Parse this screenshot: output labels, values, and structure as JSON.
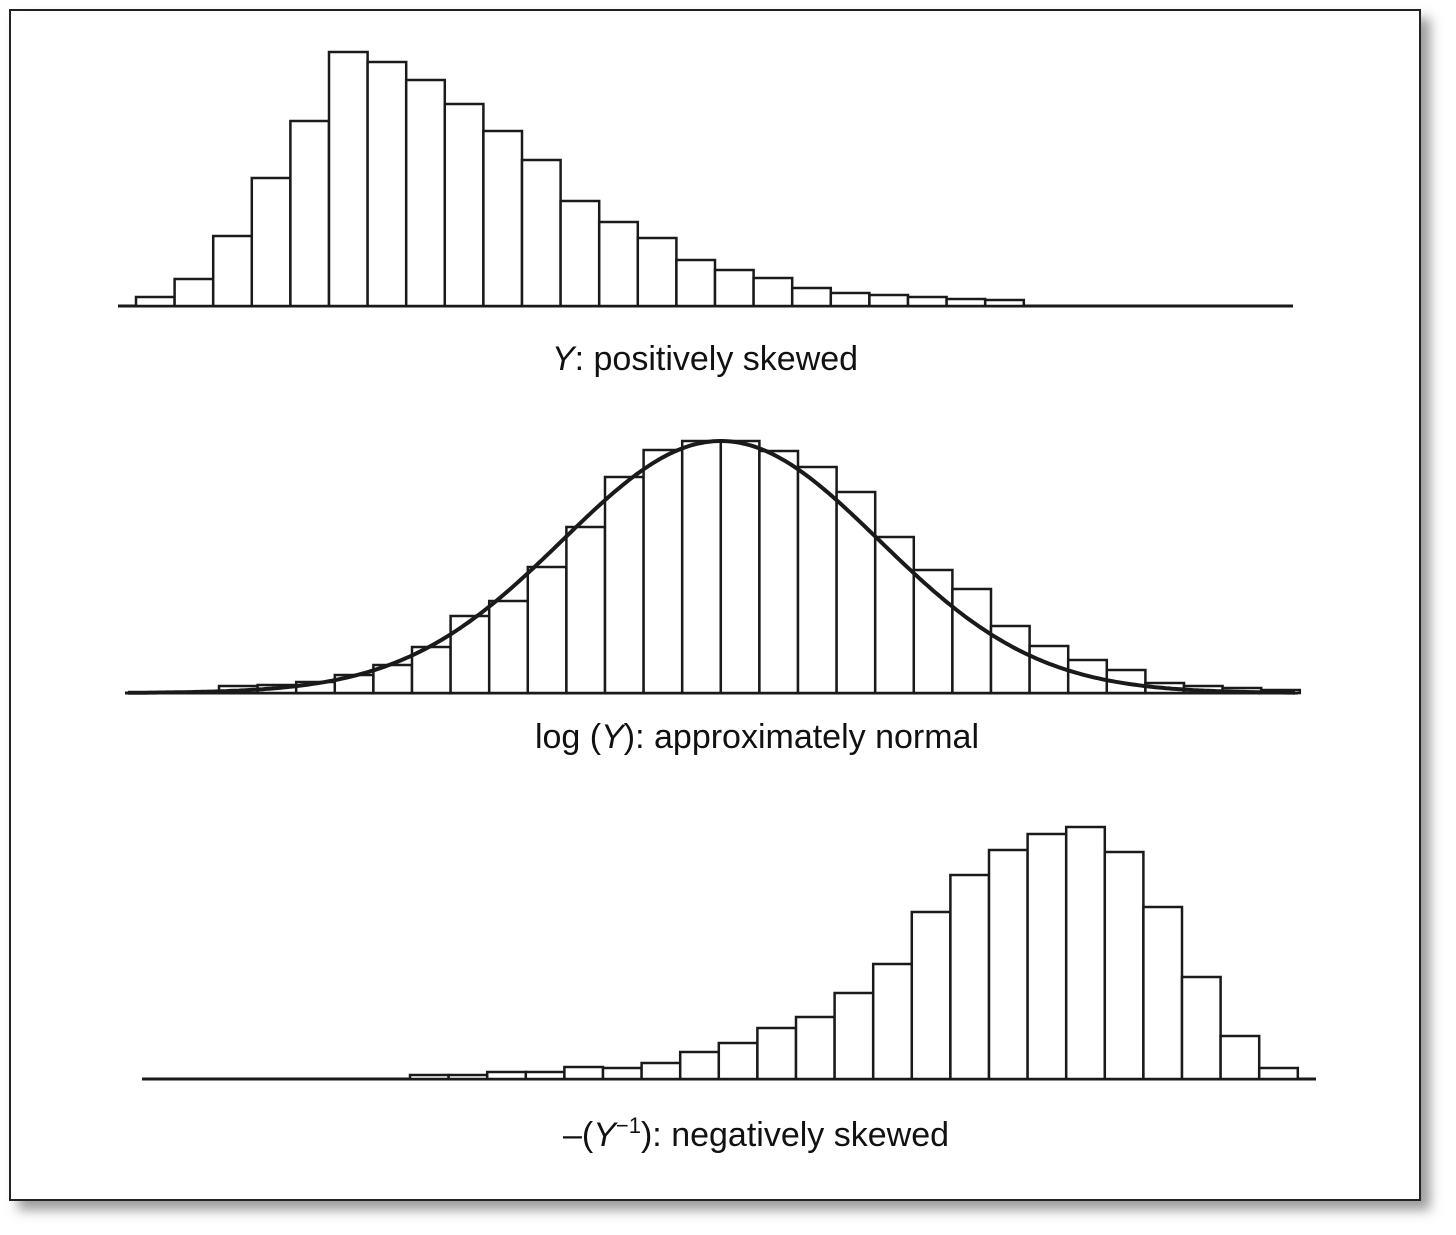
{
  "chart_data": [
    {
      "type": "bar",
      "subtype": "histogram",
      "caption": {
        "pre": "",
        "var": "Y",
        "sup": "",
        "post": ": positively skewed"
      },
      "values": [
        9,
        27,
        70,
        128,
        185,
        254,
        244,
        226,
        202,
        175,
        146,
        105,
        84,
        68,
        46,
        36,
        28,
        18,
        13,
        11,
        9,
        7,
        6
      ],
      "bar_fill": "#ffffff",
      "stroke": "#1a1a1a"
    },
    {
      "type": "bar",
      "subtype": "histogram",
      "caption": {
        "pre": "log (",
        "var": "Y",
        "sup": "",
        "post": "): approximately normal"
      },
      "values": [
        7,
        8,
        11,
        18,
        28,
        46,
        77,
        92,
        126,
        166,
        216,
        243,
        252,
        252,
        242,
        226,
        201,
        156,
        123,
        104,
        67,
        47,
        33,
        23,
        10,
        7,
        5,
        3
      ],
      "fit_curve": {
        "type": "normal",
        "mean_bin": 13.0,
        "sd_bins": 4.1,
        "peak": 252
      },
      "bar_fill": "#ffffff",
      "stroke": "#1a1a1a"
    },
    {
      "type": "bar",
      "subtype": "histogram",
      "caption": {
        "pre": "–(",
        "var": "Y",
        "sup": "−1",
        "post": "): negatively skewed"
      },
      "values": [
        4,
        4,
        7,
        7,
        12,
        11,
        16,
        27,
        36,
        51,
        62,
        86,
        115,
        167,
        204,
        229,
        245,
        252,
        227,
        172,
        102,
        43,
        11
      ],
      "bar_fill": "#ffffff",
      "stroke": "#1a1a1a"
    }
  ]
}
